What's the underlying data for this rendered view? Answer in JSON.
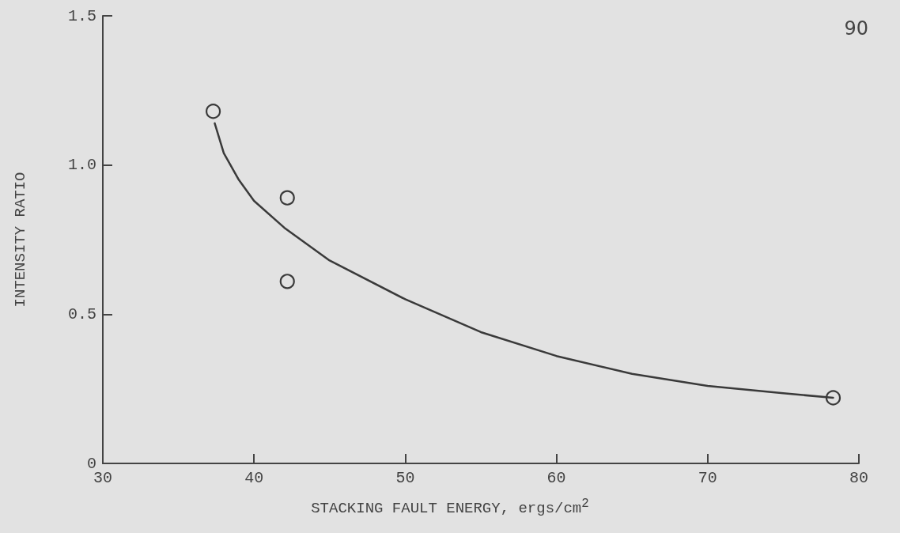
{
  "chart_data": {
    "type": "scatter",
    "xlabel": "STACKING FAULT ENERGY, ergs/cm$^{2}$",
    "ylabel": "INTENSITY RATIO",
    "annotations": [
      "90"
    ],
    "xlim": [
      30,
      80
    ],
    "xticks": [
      30,
      40,
      50,
      60,
      70,
      80
    ],
    "ylim": [
      0,
      1.5
    ],
    "yticks": [
      0,
      0.5,
      {
        "value": 1,
        "label": "1.0"
      },
      1.5
    ],
    "grid": false,
    "series": [
      {
        "color": "#3a3a3a",
        "marker": "circle",
        "x": [
          37.3,
          42.2,
          42.2,
          78.3
        ],
        "values": [
          1.18,
          0.89,
          0.61,
          0.22
        ]
      },
      {
        "type": "line",
        "color": "#3a3a3a",
        "marker": "none",
        "line_style": "solid",
        "x": [
          37.4,
          38,
          39,
          40,
          42,
          45,
          50,
          55,
          60,
          65,
          70,
          75,
          78.3
        ],
        "values": [
          1.14,
          1.04,
          0.95,
          0.88,
          0.79,
          0.68,
          0.55,
          0.44,
          0.36,
          0.3,
          0.26,
          0.235,
          0.22
        ]
      }
    ]
  }
}
